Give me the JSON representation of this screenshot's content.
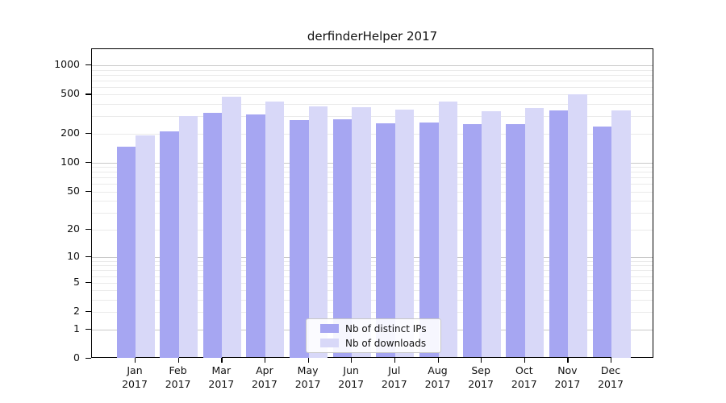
{
  "title": "derfinderHelper 2017",
  "legend": {
    "items": [
      {
        "label": "Nb of distinct IPs",
        "color": "#a6a6f2"
      },
      {
        "label": "Nb of downloads",
        "color": "#d8d8f8"
      }
    ]
  },
  "chart_data": {
    "type": "bar",
    "title": "derfinderHelper 2017",
    "xlabel": "",
    "ylabel": "",
    "y_scale": "log10(1+x)",
    "ylim": [
      0,
      1460
    ],
    "y_ticks": [
      0,
      1,
      2,
      5,
      10,
      20,
      50,
      100,
      200,
      500,
      1000
    ],
    "grid": "horizontal log major+minor",
    "legend_position": "inside bottom-center",
    "months": [
      "Jan",
      "Feb",
      "Mar",
      "Apr",
      "May",
      "Jun",
      "Jul",
      "Aug",
      "Sep",
      "Oct",
      "Nov",
      "Dec"
    ],
    "year": "2017",
    "series": [
      {
        "name": "Nb of distinct IPs",
        "key": "distinct-ips",
        "color": "#a6a6f2",
        "values": [
          146,
          210,
          325,
          314,
          274,
          280,
          255,
          260,
          250,
          248,
          345,
          235
        ]
      },
      {
        "name": "Nb of downloads",
        "key": "downloads",
        "color": "#d8d8f8",
        "values": [
          190,
          300,
          477,
          426,
          379,
          372,
          350,
          425,
          339,
          365,
          500,
          348
        ]
      }
    ]
  }
}
